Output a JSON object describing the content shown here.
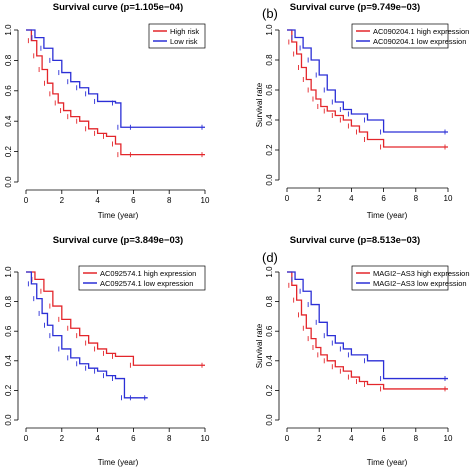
{
  "colors": {
    "red": "#e3262b",
    "blue": "#2b2fd6",
    "axis": "#000000"
  },
  "chart_data": [
    {
      "type": "line",
      "panel_label": "",
      "title": "Survival curve (p=1.105e−04)",
      "xlabel": "Time (year)",
      "ylabel": "",
      "xlim": [
        0,
        10
      ],
      "ylim": [
        0,
        1.0
      ],
      "xticks": [
        "0",
        "2",
        "4",
        "6",
        "8",
        "10"
      ],
      "yticks": [
        "0.0",
        "0.2",
        "0.4",
        "0.6",
        "0.8",
        "1.0"
      ],
      "legend_position": "top-right",
      "series": [
        {
          "name": "High risk",
          "color": "#e3262b",
          "x": [
            0,
            0.3,
            0.6,
            0.9,
            1.2,
            1.5,
            1.8,
            2.1,
            2.5,
            3.0,
            3.5,
            4.0,
            4.5,
            5.0,
            5.3,
            6.0,
            10.0
          ],
          "y": [
            1.0,
            0.93,
            0.83,
            0.74,
            0.65,
            0.58,
            0.52,
            0.47,
            0.43,
            0.4,
            0.35,
            0.32,
            0.3,
            0.25,
            0.18,
            0.18,
            0.18
          ]
        },
        {
          "name": "Low risk",
          "color": "#2b2fd6",
          "x": [
            0,
            0.5,
            1.0,
            1.5,
            2.0,
            2.5,
            3.0,
            3.5,
            4.0,
            5.0,
            5.3,
            6.0,
            10.0
          ],
          "y": [
            1.0,
            0.95,
            0.88,
            0.8,
            0.72,
            0.66,
            0.62,
            0.58,
            0.53,
            0.52,
            0.36,
            0.36,
            0.36
          ]
        }
      ]
    },
    {
      "type": "line",
      "panel_label": "(b)",
      "title": "Survival curve (p=9.749e−03)",
      "xlabel": "Time (year)",
      "ylabel": "Survival rate",
      "xlim": [
        0,
        10
      ],
      "ylim": [
        0,
        1.0
      ],
      "xticks": [
        "0",
        "2",
        "4",
        "6",
        "8",
        "10"
      ],
      "yticks": [
        "0.0",
        "0.2",
        "0.4",
        "0.6",
        "0.8",
        "1.0"
      ],
      "legend_position": "top-right",
      "series": [
        {
          "name": "AC090204.1 high expression",
          "color": "#e3262b",
          "x": [
            0,
            0.3,
            0.6,
            0.9,
            1.2,
            1.5,
            1.8,
            2.1,
            2.5,
            3.0,
            3.5,
            4.0,
            4.5,
            5.0,
            6.0,
            10.0
          ],
          "y": [
            1.0,
            0.92,
            0.84,
            0.75,
            0.67,
            0.6,
            0.54,
            0.49,
            0.46,
            0.43,
            0.4,
            0.36,
            0.32,
            0.27,
            0.22,
            0.22
          ]
        },
        {
          "name": "AC090204.1 low expression",
          "color": "#2b2fd6",
          "x": [
            0,
            0.5,
            1.0,
            1.5,
            2.0,
            2.5,
            3.0,
            3.5,
            4.0,
            5.0,
            6.0,
            10.0
          ],
          "y": [
            1.0,
            0.95,
            0.88,
            0.8,
            0.7,
            0.6,
            0.52,
            0.47,
            0.44,
            0.4,
            0.32,
            0.32
          ]
        }
      ]
    },
    {
      "type": "line",
      "panel_label": "",
      "title": "Survival curve (p=3.849e−03)",
      "xlabel": "Time (year)",
      "ylabel": "",
      "xlim": [
        0,
        10
      ],
      "ylim": [
        0,
        1.0
      ],
      "xticks": [
        "0",
        "2",
        "4",
        "6",
        "8",
        "10"
      ],
      "yticks": [
        "0.0",
        "0.2",
        "0.4",
        "0.6",
        "0.8",
        "1.0"
      ],
      "legend_position": "top-right",
      "series": [
        {
          "name": "AC092574.1 high expression",
          "color": "#e3262b",
          "x": [
            0,
            0.5,
            1.0,
            1.5,
            2.0,
            2.5,
            3.0,
            3.5,
            4.0,
            4.5,
            5.0,
            6.0,
            10.0
          ],
          "y": [
            1.0,
            0.95,
            0.87,
            0.77,
            0.68,
            0.62,
            0.57,
            0.52,
            0.48,
            0.45,
            0.43,
            0.37,
            0.37
          ]
        },
        {
          "name": "AC092574.1 low expression",
          "color": "#2b2fd6",
          "x": [
            0,
            0.3,
            0.6,
            0.9,
            1.2,
            1.5,
            2.0,
            2.5,
            3.0,
            3.5,
            4.0,
            4.5,
            5.0,
            5.5,
            6.0,
            6.8
          ],
          "y": [
            1.0,
            0.92,
            0.82,
            0.72,
            0.64,
            0.57,
            0.48,
            0.42,
            0.38,
            0.35,
            0.33,
            0.3,
            0.28,
            0.15,
            0.15,
            0.15
          ]
        }
      ]
    },
    {
      "type": "line",
      "panel_label": "(d)",
      "title": "Survival curve (p=8.513e−03)",
      "xlabel": "Time (year)",
      "ylabel": "Survival rate",
      "xlim": [
        0,
        10
      ],
      "ylim": [
        0,
        1.0
      ],
      "xticks": [
        "0",
        "2",
        "4",
        "6",
        "8",
        "10"
      ],
      "yticks": [
        "0.0",
        "0.2",
        "0.4",
        "0.6",
        "0.8",
        "1.0"
      ],
      "legend_position": "top-right",
      "series": [
        {
          "name": "MAGI2−AS3 high expression",
          "color": "#e3262b",
          "x": [
            0,
            0.3,
            0.6,
            0.9,
            1.2,
            1.5,
            1.8,
            2.1,
            2.5,
            3.0,
            3.5,
            4.0,
            4.5,
            5.0,
            6.0,
            10.0
          ],
          "y": [
            1.0,
            0.91,
            0.81,
            0.71,
            0.62,
            0.55,
            0.49,
            0.44,
            0.4,
            0.36,
            0.33,
            0.29,
            0.26,
            0.24,
            0.21,
            0.21
          ]
        },
        {
          "name": "MAGI2−AS3 low expression",
          "color": "#2b2fd6",
          "x": [
            0,
            0.5,
            1.0,
            1.5,
            2.0,
            2.5,
            3.0,
            3.5,
            4.0,
            5.0,
            6.0,
            10.0
          ],
          "y": [
            1.0,
            0.95,
            0.87,
            0.78,
            0.66,
            0.57,
            0.52,
            0.48,
            0.44,
            0.4,
            0.28,
            0.28
          ]
        }
      ]
    }
  ]
}
